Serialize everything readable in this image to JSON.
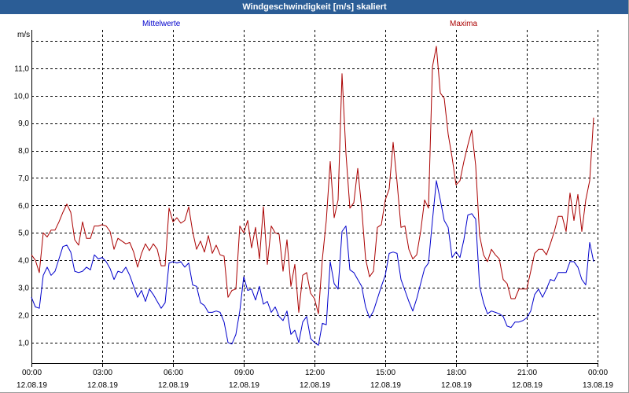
{
  "colors": {
    "title_bar": "#2b5d96",
    "title_text": "#ffffff",
    "grid": "#000000",
    "axis": "#000000",
    "background": "#ffffff"
  },
  "chart_data": {
    "type": "line",
    "title": "Windgeschwindigkeit [m/s] skaliert",
    "ylabel": "m/s",
    "ylim": [
      0.25,
      12.4
    ],
    "xlim": [
      "12.08.19 00:00",
      "13.08.19 00:00"
    ],
    "grid": true,
    "legend": "top",
    "yticks": [
      {
        "value": 1,
        "label": "1,0"
      },
      {
        "value": 2,
        "label": "2,0"
      },
      {
        "value": 3,
        "label": "3,0"
      },
      {
        "value": 4,
        "label": "4,0"
      },
      {
        "value": 5,
        "label": "5,0"
      },
      {
        "value": 6,
        "label": "6,0"
      },
      {
        "value": 7,
        "label": "7,0"
      },
      {
        "value": 8,
        "label": "8,0"
      },
      {
        "value": 9,
        "label": "9,0"
      },
      {
        "value": 10,
        "label": "10,0"
      },
      {
        "value": 11,
        "label": "11,0"
      }
    ],
    "grid_y": [
      1,
      2,
      3,
      4,
      5,
      6,
      7,
      8,
      9,
      10,
      11,
      12
    ],
    "xticks": [
      {
        "time": "00:00",
        "date": "12.08.19"
      },
      {
        "time": "03:00",
        "date": "12.08.19"
      },
      {
        "time": "06:00",
        "date": "12.08.19"
      },
      {
        "time": "09:00",
        "date": "12.08.19"
      },
      {
        "time": "12:00",
        "date": "12.08.19"
      },
      {
        "time": "15:00",
        "date": "12.08.19"
      },
      {
        "time": "18:00",
        "date": "12.08.19"
      },
      {
        "time": "21:00",
        "date": "12.08.19"
      },
      {
        "time": "00:00",
        "date": "13.08.19"
      }
    ],
    "x": [
      "12.08.19 00:00",
      "12.08.19 00:10",
      "12.08.19 00:20",
      "12.08.19 00:30",
      "12.08.19 00:40",
      "12.08.19 00:50",
      "12.08.19 01:00",
      "12.08.19 01:10",
      "12.08.19 01:20",
      "12.08.19 01:30",
      "12.08.19 01:40",
      "12.08.19 01:50",
      "12.08.19 02:00",
      "12.08.19 02:10",
      "12.08.19 02:20",
      "12.08.19 02:30",
      "12.08.19 02:40",
      "12.08.19 02:50",
      "12.08.19 03:00",
      "12.08.19 03:10",
      "12.08.19 03:20",
      "12.08.19 03:30",
      "12.08.19 03:40",
      "12.08.19 03:50",
      "12.08.19 04:00",
      "12.08.19 04:10",
      "12.08.19 04:20",
      "12.08.19 04:30",
      "12.08.19 04:40",
      "12.08.19 04:50",
      "12.08.19 05:00",
      "12.08.19 05:10",
      "12.08.19 05:20",
      "12.08.19 05:30",
      "12.08.19 05:40",
      "12.08.19 05:50",
      "12.08.19 06:00",
      "12.08.19 06:10",
      "12.08.19 06:20",
      "12.08.19 06:30",
      "12.08.19 06:40",
      "12.08.19 06:50",
      "12.08.19 07:00",
      "12.08.19 07:10",
      "12.08.19 07:20",
      "12.08.19 07:30",
      "12.08.19 07:40",
      "12.08.19 07:50",
      "12.08.19 08:00",
      "12.08.19 08:10",
      "12.08.19 08:20",
      "12.08.19 08:30",
      "12.08.19 08:40",
      "12.08.19 08:50",
      "12.08.19 09:00",
      "12.08.19 09:10",
      "12.08.19 09:20",
      "12.08.19 09:30",
      "12.08.19 09:40",
      "12.08.19 09:50",
      "12.08.19 10:00",
      "12.08.19 10:10",
      "12.08.19 10:20",
      "12.08.19 10:30",
      "12.08.19 10:40",
      "12.08.19 10:50",
      "12.08.19 11:00",
      "12.08.19 11:10",
      "12.08.19 11:20",
      "12.08.19 11:30",
      "12.08.19 11:40",
      "12.08.19 11:50",
      "12.08.19 12:00",
      "12.08.19 12:10",
      "12.08.19 12:20",
      "12.08.19 12:30",
      "12.08.19 12:40",
      "12.08.19 12:50",
      "12.08.19 13:00",
      "12.08.19 13:10",
      "12.08.19 13:20",
      "12.08.19 13:30",
      "12.08.19 13:40",
      "12.08.19 13:50",
      "12.08.19 14:00",
      "12.08.19 14:10",
      "12.08.19 14:20",
      "12.08.19 14:30",
      "12.08.19 14:40",
      "12.08.19 14:50",
      "12.08.19 15:00",
      "12.08.19 15:10",
      "12.08.19 15:20",
      "12.08.19 15:30",
      "12.08.19 15:40",
      "12.08.19 15:50",
      "12.08.19 16:00",
      "12.08.19 16:10",
      "12.08.19 16:20",
      "12.08.19 16:30",
      "12.08.19 16:40",
      "12.08.19 16:50",
      "12.08.19 17:00",
      "12.08.19 17:10",
      "12.08.19 17:20",
      "12.08.19 17:30",
      "12.08.19 17:40",
      "12.08.19 17:50",
      "12.08.19 18:00",
      "12.08.19 18:10",
      "12.08.19 18:20",
      "12.08.19 18:30",
      "12.08.19 18:40",
      "12.08.19 18:50",
      "12.08.19 19:00",
      "12.08.19 19:10",
      "12.08.19 19:20",
      "12.08.19 19:30",
      "12.08.19 19:40",
      "12.08.19 19:50",
      "12.08.19 20:00",
      "12.08.19 20:10",
      "12.08.19 20:20",
      "12.08.19 20:30",
      "12.08.19 20:40",
      "12.08.19 20:50",
      "12.08.19 21:00",
      "12.08.19 21:10",
      "12.08.19 21:20",
      "12.08.19 21:30",
      "12.08.19 21:40",
      "12.08.19 21:50",
      "12.08.19 22:00",
      "12.08.19 22:10",
      "12.08.19 22:20",
      "12.08.19 22:30",
      "12.08.19 22:40",
      "12.08.19 22:50",
      "12.08.19 23:00",
      "12.08.19 23:10",
      "12.08.19 23:20",
      "12.08.19 23:30",
      "12.08.19 23:40",
      "12.08.19 23:50"
    ],
    "series": [
      {
        "name": "Mittelwerte",
        "color": "#0000cc",
        "values": [
          2.65,
          2.3,
          2.25,
          3.45,
          3.75,
          3.45,
          3.6,
          4.05,
          4.5,
          4.55,
          4.3,
          3.6,
          3.55,
          3.6,
          3.75,
          3.65,
          4.2,
          4.05,
          4.1,
          3.95,
          3.7,
          3.3,
          3.6,
          3.55,
          3.75,
          3.45,
          3.05,
          2.65,
          2.9,
          2.5,
          2.95,
          2.75,
          2.5,
          2.25,
          2.45,
          3.9,
          3.95,
          3.9,
          3.95,
          3.75,
          3.9,
          3.1,
          3.05,
          2.45,
          2.35,
          2.1,
          2.1,
          2.15,
          2.1,
          1.75,
          1.0,
          0.95,
          1.3,
          2.15,
          3.4,
          2.9,
          2.95,
          2.55,
          3.05,
          2.4,
          2.5,
          2.1,
          2.3,
          1.95,
          1.8,
          2.15,
          1.3,
          1.45,
          1.0,
          1.75,
          1.95,
          1.15,
          1.0,
          0.9,
          1.7,
          1.65,
          3.95,
          3.15,
          2.95,
          5.05,
          5.25,
          3.65,
          3.55,
          3.3,
          3.05,
          2.3,
          1.9,
          2.15,
          2.6,
          3.05,
          3.45,
          4.25,
          4.3,
          4.25,
          3.3,
          2.9,
          2.5,
          2.15,
          2.6,
          3.15,
          3.7,
          3.9,
          5.45,
          6.9,
          6.2,
          5.45,
          5.2,
          4.1,
          4.3,
          4.1,
          4.75,
          5.65,
          5.7,
          5.5,
          3.05,
          2.45,
          2.05,
          2.15,
          2.1,
          2.05,
          1.95,
          1.6,
          1.55,
          1.75,
          1.75,
          1.8,
          1.9,
          2.15,
          2.75,
          2.95,
          2.65,
          2.95,
          3.3,
          3.25,
          3.55,
          3.55,
          3.55,
          3.95,
          3.95,
          3.75,
          3.3,
          3.1,
          4.65,
          3.95
        ]
      },
      {
        "name": "Maxima",
        "color": "#aa0000",
        "values": [
          4.2,
          4.0,
          3.55,
          5.0,
          4.85,
          5.1,
          5.1,
          5.4,
          5.75,
          6.05,
          5.75,
          4.75,
          4.55,
          5.4,
          4.8,
          4.8,
          5.25,
          5.25,
          5.3,
          5.25,
          5.05,
          4.4,
          4.8,
          4.7,
          4.6,
          4.65,
          4.3,
          3.75,
          4.25,
          4.6,
          4.35,
          4.6,
          4.4,
          3.8,
          3.8,
          5.9,
          5.4,
          5.55,
          5.35,
          5.45,
          5.95,
          5.05,
          4.4,
          4.7,
          4.3,
          4.9,
          4.25,
          4.55,
          4.2,
          4.15,
          2.65,
          2.9,
          2.95,
          5.25,
          5.0,
          5.45,
          4.45,
          5.2,
          4.05,
          5.95,
          3.85,
          5.25,
          5.0,
          4.95,
          3.6,
          4.75,
          3.05,
          3.85,
          2.1,
          3.45,
          3.55,
          2.8,
          2.6,
          2.05,
          4.05,
          5.45,
          7.6,
          5.55,
          6.2,
          10.8,
          7.9,
          5.9,
          6.1,
          7.35,
          5.9,
          4.05,
          3.4,
          3.6,
          5.2,
          5.3,
          6.2,
          6.6,
          8.3,
          6.85,
          5.2,
          5.25,
          4.4,
          4.05,
          4.2,
          5.05,
          6.2,
          5.9,
          11.05,
          11.8,
          10.1,
          9.9,
          8.6,
          7.75,
          6.75,
          6.9,
          7.6,
          8.2,
          8.75,
          7.45,
          4.9,
          4.2,
          3.95,
          4.4,
          4.2,
          4.05,
          3.3,
          3.15,
          2.6,
          2.6,
          2.95,
          2.95,
          2.95,
          3.6,
          4.25,
          4.4,
          4.4,
          4.2,
          4.6,
          5.05,
          5.6,
          5.6,
          5.05,
          6.45,
          5.45,
          6.4,
          5.05,
          6.2,
          6.9,
          9.2
        ]
      }
    ]
  }
}
